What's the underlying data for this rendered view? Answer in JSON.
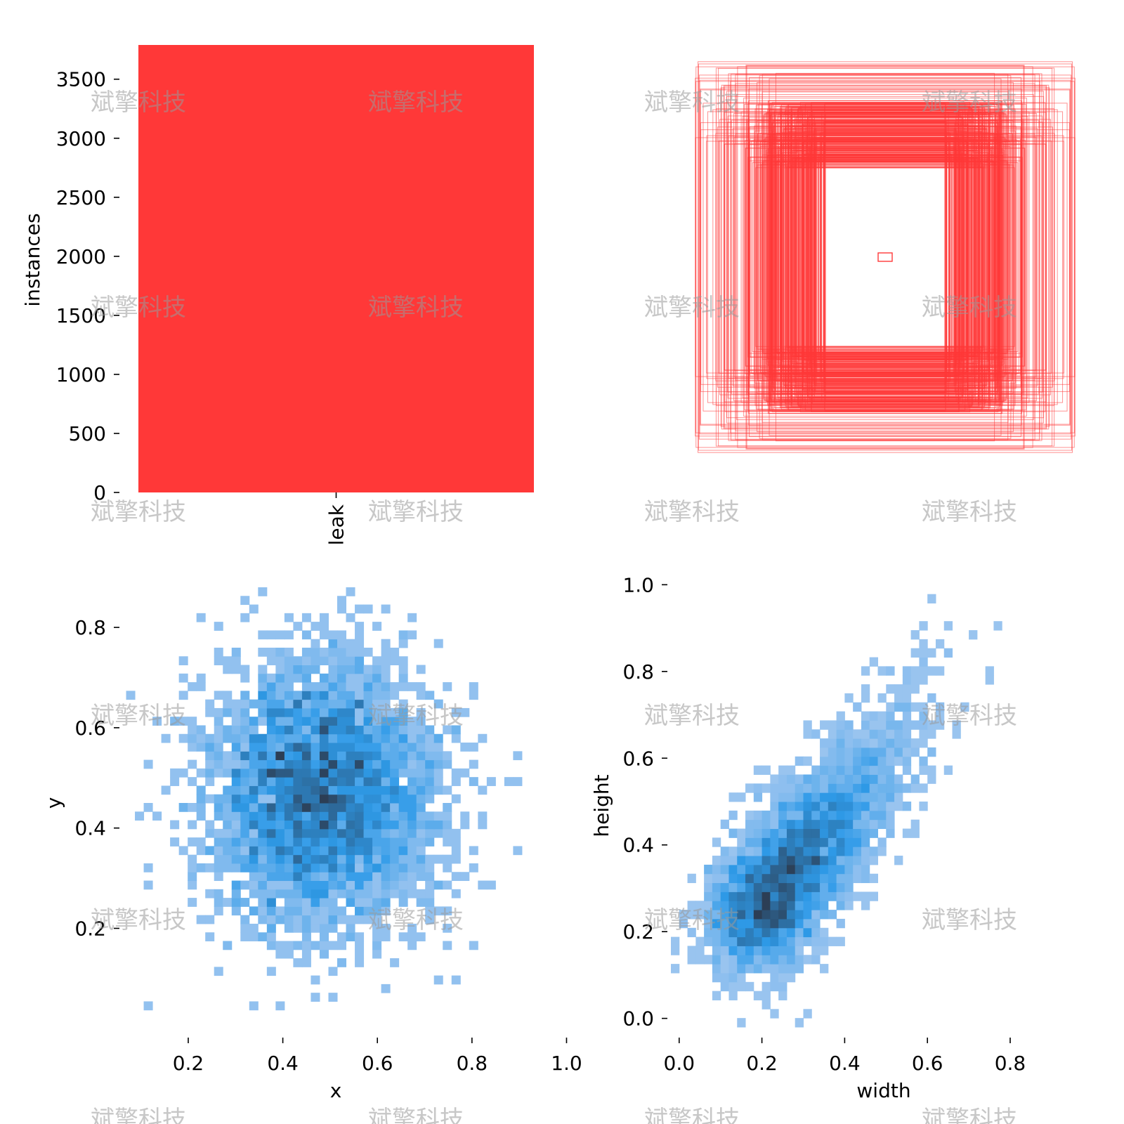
{
  "colors": {
    "bar": "#ff3838",
    "boxes": "#ff3838",
    "hist_light": "#a4c8f0",
    "hist_mid": "#2e9ae8",
    "hist_dark": "#2c3e55",
    "watermark": "#9a9a9a"
  },
  "watermark": {
    "text": "斌擎科技"
  },
  "chart_data": [
    {
      "type": "bar",
      "categories": [
        "leak"
      ],
      "values": [
        3790
      ],
      "xlabel": "",
      "ylabel": "instances",
      "ylim": [
        0,
        3790
      ],
      "yticks": [
        0,
        500,
        1000,
        1500,
        2000,
        2500,
        3000,
        3500
      ],
      "ytick_labels": [
        "0",
        "500",
        "1000",
        "1500",
        "2000",
        "2500",
        "3000",
        "3500"
      ],
      "grid": false
    },
    {
      "type": "scatter",
      "description_kind": "centered bounding-box outlines (label shapes)",
      "box_count_approx": 3790,
      "width_range": [
        0.02,
        0.95
      ],
      "height_range": [
        0.02,
        1.0
      ],
      "axes_visible": false
    },
    {
      "type": "heatmap",
      "xlabel": "x",
      "ylabel": "y",
      "xlim": [
        0.05,
        0.98
      ],
      "ylim": [
        0.02,
        0.88
      ],
      "xticks": [
        0.2,
        0.4,
        0.6,
        0.8,
        1.0
      ],
      "xtick_labels": [
        "0.2",
        "0.4",
        "0.6",
        "0.8",
        "1.0"
      ],
      "yticks": [
        0.2,
        0.4,
        0.6,
        0.8
      ],
      "ytick_labels": [
        "0.2",
        "0.4",
        "0.6",
        "0.8"
      ],
      "bins": 50,
      "center": [
        0.48,
        0.47
      ],
      "spread": [
        0.12,
        0.13
      ],
      "grid": false
    },
    {
      "type": "heatmap",
      "xlabel": "width",
      "ylabel": "height",
      "xlim": [
        -0.02,
        0.98
      ],
      "ylim": [
        -0.02,
        1.02
      ],
      "xticks": [
        0.0,
        0.2,
        0.4,
        0.6,
        0.8
      ],
      "xtick_labels": [
        "0.0",
        "0.2",
        "0.4",
        "0.6",
        "0.8"
      ],
      "yticks": [
        0.0,
        0.2,
        0.4,
        0.6,
        0.8,
        1.0
      ],
      "ytick_labels": [
        "0.0",
        "0.2",
        "0.4",
        "0.6",
        "0.8",
        "1.0"
      ],
      "bins": 50,
      "center": [
        0.22,
        0.25
      ],
      "correlation": "positive",
      "grid": false
    }
  ]
}
